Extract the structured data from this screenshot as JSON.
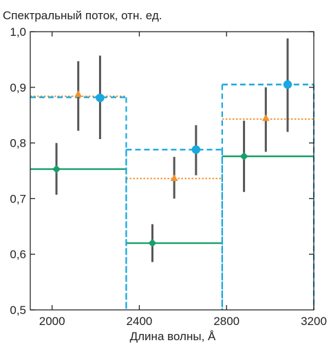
{
  "chart_data": {
    "type": "scatter",
    "title": "",
    "ylabel": "Спектральный поток, отн. ед.",
    "xlabel": "Длина волны, Å",
    "xlim": [
      1900,
      3200
    ],
    "ylim": [
      0.5,
      1.0
    ],
    "xticks": [
      2000,
      2400,
      2800,
      3200
    ],
    "xtick_labels": [
      "2000",
      "2400",
      "2800",
      "3200"
    ],
    "yticks": [
      0.5,
      0.6,
      0.7,
      0.8,
      0.9,
      1.0
    ],
    "ytick_labels": [
      "0,5",
      "0,6",
      "0,7",
      "0,8",
      "0,9",
      "1,0"
    ],
    "grid": false,
    "legend": "none",
    "series": [
      {
        "color": "#1a9e6a",
        "line_style": "solid",
        "marker": "diamond",
        "bins": [
          {
            "x0": 1900,
            "x1": 2340,
            "level": 0.753
          },
          {
            "x0": 2340,
            "x1": 2780,
            "level": 0.62
          },
          {
            "x0": 2780,
            "x1": 3200,
            "level": 0.776
          }
        ],
        "points": [
          {
            "x": 2020,
            "y": 0.753,
            "err_low": 0.707,
            "err_high": 0.8
          },
          {
            "x": 2460,
            "y": 0.62,
            "err_low": 0.586,
            "err_high": 0.654
          },
          {
            "x": 2880,
            "y": 0.776,
            "err_low": 0.712,
            "err_high": 0.84
          }
        ]
      },
      {
        "color": "#f5922b",
        "line_style": "dotted",
        "marker": "triangle",
        "bins": [
          {
            "x0": 1900,
            "x1": 2340,
            "level": 0.884
          },
          {
            "x0": 2340,
            "x1": 2780,
            "level": 0.736
          },
          {
            "x0": 2780,
            "x1": 3200,
            "level": 0.843
          }
        ],
        "points": [
          {
            "x": 2120,
            "y": 0.888,
            "err_low": 0.822,
            "err_high": 0.947
          },
          {
            "x": 2560,
            "y": 0.737,
            "err_low": 0.7,
            "err_high": 0.775
          },
          {
            "x": 2980,
            "y": 0.845,
            "err_low": 0.784,
            "err_high": 0.9
          }
        ]
      },
      {
        "color": "#1aa8e0",
        "line_style": "dashed",
        "marker": "circle",
        "bins": [
          {
            "x0": 1900,
            "x1": 2340,
            "level": 0.882
          },
          {
            "x0": 2340,
            "x1": 2780,
            "level": 0.788
          },
          {
            "x0": 2780,
            "x1": 3200,
            "level": 0.905
          }
        ],
        "points": [
          {
            "x": 2220,
            "y": 0.881,
            "err_low": 0.807,
            "err_high": 0.957
          },
          {
            "x": 2660,
            "y": 0.788,
            "err_low": 0.742,
            "err_high": 0.832
          },
          {
            "x": 3080,
            "y": 0.905,
            "err_low": 0.82,
            "err_high": 0.988
          }
        ]
      }
    ],
    "error_bar_color": "#555555"
  }
}
